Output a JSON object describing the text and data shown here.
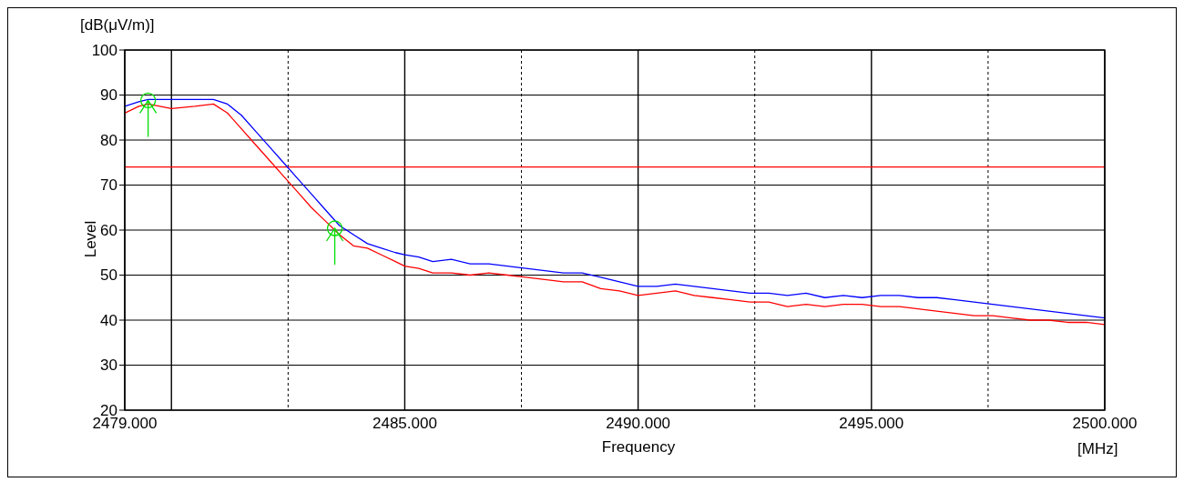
{
  "chart_data": {
    "type": "line",
    "xlabel": "Frequency",
    "ylabel": "Level",
    "annotations": [
      "[dB(μV/m)]",
      "[MHz]"
    ],
    "xlim": [
      2479,
      2500
    ],
    "ylim": [
      20,
      100
    ],
    "xticks": [
      {
        "value": 2479,
        "label": "2479.000"
      },
      {
        "value": 2480,
        "label": null
      },
      {
        "value": 2482.5,
        "label": null
      },
      {
        "value": 2485,
        "label": "2485.000"
      },
      {
        "value": 2487.5,
        "label": null
      },
      {
        "value": 2490,
        "label": "2490.000"
      },
      {
        "value": 2492.5,
        "label": null
      },
      {
        "value": 2495,
        "label": "2495.000"
      },
      {
        "value": 2497.5,
        "label": null
      },
      {
        "value": 2500,
        "label": "2500.000"
      }
    ],
    "yticks": [
      20,
      30,
      40,
      50,
      60,
      70,
      80,
      90,
      100
    ],
    "grid": true,
    "marker": "none",
    "line_style": "solid",
    "x": [
      2479,
      2479.3,
      2479.5,
      2480,
      2480.5,
      2480.9,
      2481.2,
      2481.5,
      2481.8,
      2482.1,
      2482.4,
      2482.7,
      2483.0,
      2483.3,
      2483.6,
      2483.9,
      2484.2,
      2484.5,
      2484.8,
      2485.0,
      2485.3,
      2485.6,
      2486.0,
      2486.4,
      2486.8,
      2487.2,
      2487.6,
      2488.0,
      2488.4,
      2488.8,
      2489.2,
      2489.6,
      2490.0,
      2490.4,
      2490.8,
      2491.2,
      2491.6,
      2492.0,
      2492.4,
      2492.8,
      2493.2,
      2493.6,
      2494.0,
      2494.4,
      2494.8,
      2495.2,
      2495.6,
      2496.0,
      2496.4,
      2496.8,
      2497.2,
      2497.6,
      2498.0,
      2498.4,
      2498.8,
      2499.2,
      2499.6,
      2500
    ],
    "series": [
      {
        "color": "#0000ff",
        "values": [
          87.5,
          88.5,
          89,
          89,
          89,
          89,
          88,
          85.5,
          82,
          78.5,
          75,
          71.5,
          68,
          64.5,
          61,
          59,
          57,
          56,
          55,
          54.5,
          54,
          53,
          53.5,
          52.5,
          52.5,
          52,
          51.5,
          51,
          50.5,
          50.5,
          49.5,
          48.5,
          47.5,
          47.5,
          48,
          47.5,
          47,
          46.5,
          46,
          46,
          45.5,
          46,
          45,
          45.5,
          45,
          45.5,
          45.5,
          45,
          45,
          44.5,
          44,
          43.5,
          43,
          42.5,
          42,
          41.5,
          41,
          40.5
        ]
      },
      {
        "color": "#ff0000",
        "values": [
          86,
          87.5,
          88,
          87,
          87.5,
          88,
          86,
          82.5,
          79,
          75.5,
          72,
          68.5,
          65,
          62,
          59,
          56.5,
          56,
          54.5,
          53,
          52,
          51.5,
          50.5,
          50.5,
          50,
          50.5,
          50,
          49.5,
          49,
          48.5,
          48.5,
          47,
          46.5,
          45.5,
          46,
          46.5,
          45.5,
          45,
          44.5,
          44,
          44,
          43,
          43.5,
          43,
          43.5,
          43.5,
          43,
          43,
          42.5,
          42,
          41.5,
          41,
          41,
          40.5,
          40,
          40,
          39.5,
          39.5,
          39
        ]
      },
      {
        "type": "scatter",
        "marker": "circle",
        "color": "#00dd00",
        "x": [
          2479.5,
          2483.5
        ],
        "values": [
          88.8,
          60.4
        ]
      }
    ],
    "ref_lines": [
      {
        "axis": "y",
        "value": 74,
        "color": "#ff0000"
      }
    ]
  }
}
